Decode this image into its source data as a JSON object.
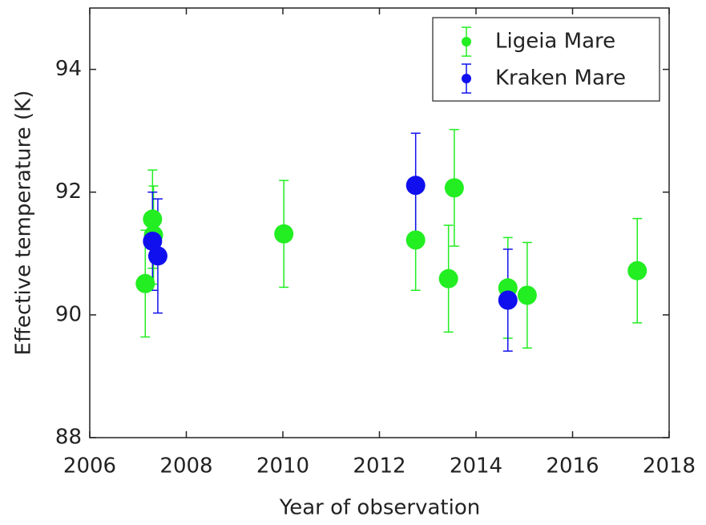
{
  "chart_data": {
    "type": "scatter",
    "x_label": "Year of observation",
    "y_label": "Effective temperature (K)",
    "xlim": [
      2006,
      2018
    ],
    "xticks": [
      2006,
      2008,
      2010,
      2012,
      2014,
      2016,
      2018
    ],
    "ylim": [
      88,
      95
    ],
    "yticks": [
      88,
      90,
      92,
      94
    ],
    "legend": "upper right",
    "grid": false,
    "series": [
      {
        "name": "Ligeia Mare",
        "color": "#22ee22",
        "x": [
          2007.15,
          2007.3,
          2007.32,
          2010.02,
          2012.75,
          2013.43,
          2013.55,
          2014.66,
          2015.06,
          2017.34
        ],
        "values": [
          90.51,
          91.56,
          91.3,
          91.32,
          91.22,
          90.59,
          92.07,
          90.44,
          90.32,
          90.72
        ],
        "errors": [
          0.87,
          0.8,
          0.8,
          0.87,
          0.82,
          0.87,
          0.95,
          0.82,
          0.86,
          0.85
        ]
      },
      {
        "name": "Kraken Mare",
        "color": "#1010ee",
        "x": [
          2007.3,
          2007.41,
          2012.75,
          2014.66
        ],
        "values": [
          91.2,
          90.96,
          92.11,
          90.24
        ],
        "errors": [
          0.8,
          0.93,
          0.85,
          0.83
        ]
      }
    ]
  }
}
